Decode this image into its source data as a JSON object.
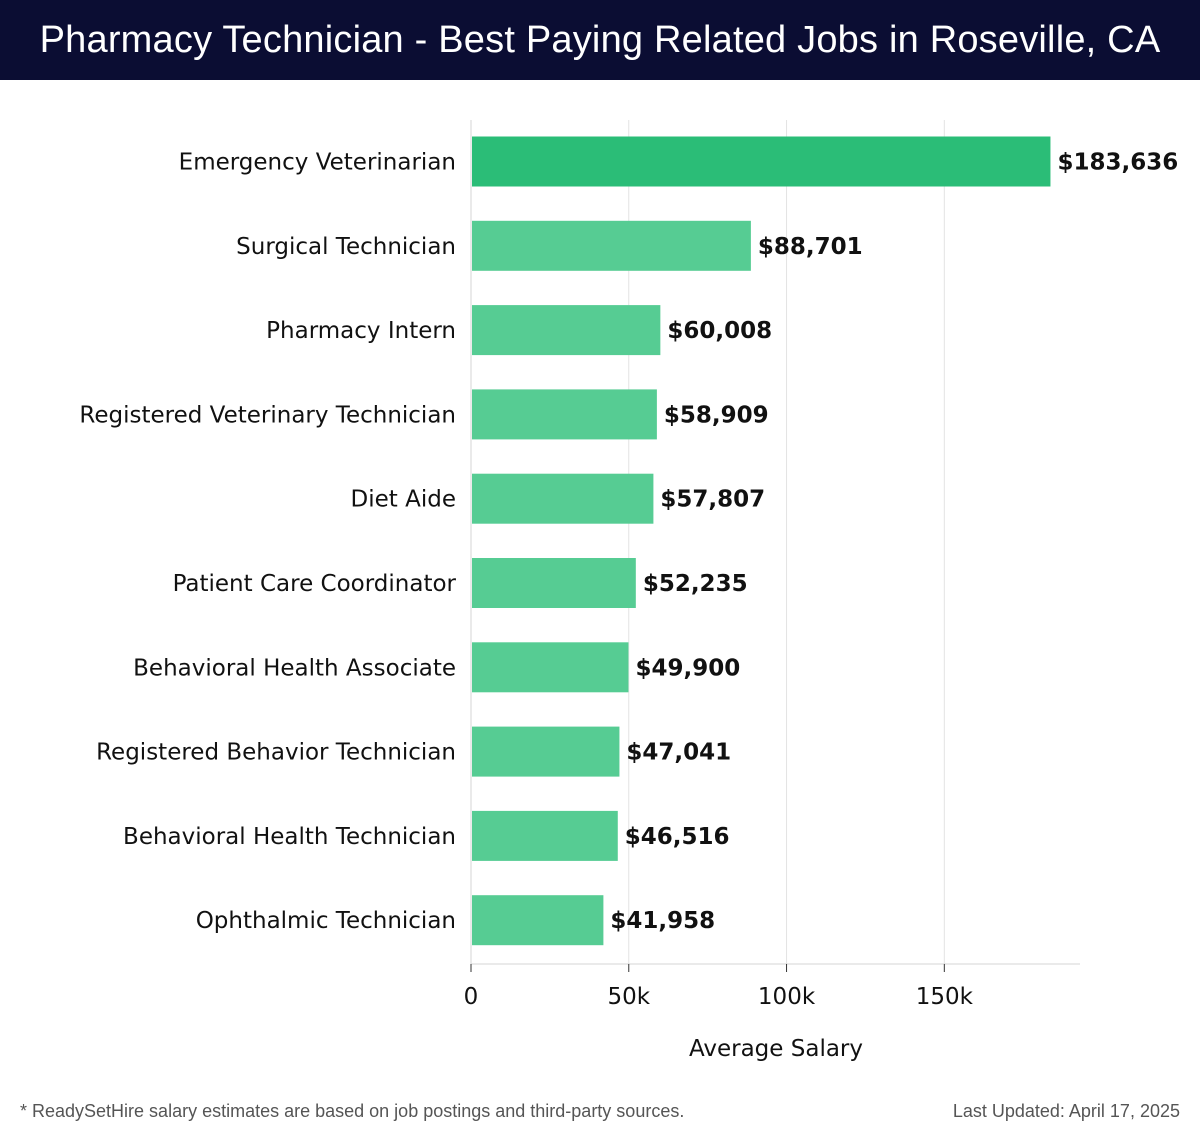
{
  "header": {
    "title": "Pharmacy Technician - Best Paying Related Jobs in Roseville, CA"
  },
  "footer": {
    "note": "* ReadySetHire salary estimates are based on job postings and third-party sources.",
    "updated": "Last Updated: April 17, 2025"
  },
  "colors": {
    "header_bg": "#0b0d33",
    "top_bar": "#2bbd77",
    "bar": "#56cc93"
  },
  "chart_data": {
    "type": "bar",
    "orientation": "horizontal",
    "categories": [
      "Emergency Veterinarian",
      "Surgical Technician",
      "Pharmacy Intern",
      "Registered Veterinary Technician",
      "Diet Aide",
      "Patient Care Coordinator",
      "Behavioral Health Associate",
      "Registered Behavior Technician",
      "Behavioral Health Technician",
      "Ophthalmic Technician"
    ],
    "values": [
      183636,
      88701,
      60008,
      58909,
      57807,
      52235,
      49900,
      47041,
      46516,
      41958
    ],
    "value_labels": [
      "$183,636",
      "$88,701",
      "$60,008",
      "$58,909",
      "$57,807",
      "$52,235",
      "$49,900",
      "$47,041",
      "$46,516",
      "$41,958"
    ],
    "xlabel": "Average Salary",
    "ylabel": "",
    "xticks": [
      0,
      50000,
      100000,
      150000
    ],
    "xtick_labels": [
      "0",
      "50k",
      "100k",
      "150k"
    ],
    "xlim": [
      0,
      193000
    ],
    "grid": "vertical"
  }
}
